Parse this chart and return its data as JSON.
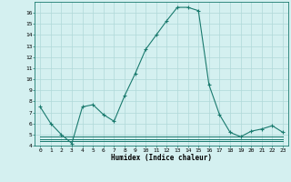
{
  "x": [
    0,
    1,
    2,
    3,
    4,
    5,
    6,
    7,
    8,
    9,
    10,
    11,
    12,
    13,
    14,
    15,
    16,
    17,
    18,
    19,
    20,
    21,
    22,
    23
  ],
  "y_main": [
    7.5,
    6.0,
    5.0,
    4.2,
    7.5,
    7.7,
    6.8,
    6.2,
    8.5,
    10.5,
    12.7,
    14.0,
    15.3,
    16.5,
    16.5,
    16.2,
    9.5,
    6.8,
    5.2,
    4.8,
    5.3,
    5.5,
    5.8,
    5.2
  ],
  "y_flat1": [
    4.8,
    4.8,
    4.8,
    4.8,
    4.8,
    4.8,
    4.8,
    4.8,
    4.8,
    4.8,
    4.8,
    4.8,
    4.8,
    4.8,
    4.8,
    4.8,
    4.8,
    4.8,
    4.8,
    4.8,
    4.8,
    4.8,
    4.8,
    4.8
  ],
  "y_flat2": [
    4.6,
    4.6,
    4.6,
    4.6,
    4.6,
    4.6,
    4.6,
    4.6,
    4.6,
    4.6,
    4.6,
    4.6,
    4.6,
    4.6,
    4.6,
    4.6,
    4.6,
    4.6,
    4.6,
    4.6,
    4.6,
    4.6,
    4.6,
    4.6
  ],
  "y_flat3": [
    4.4,
    4.4,
    4.4,
    4.4,
    4.4,
    4.4,
    4.4,
    4.4,
    4.4,
    4.4,
    4.4,
    4.4,
    4.4,
    4.4,
    4.4,
    4.4,
    4.4,
    4.4,
    4.4,
    4.4,
    4.4,
    4.4,
    4.4,
    4.4
  ],
  "line_color": "#1a7a6e",
  "bg_color": "#d4f0f0",
  "grid_color": "#b0d8d8",
  "xlabel": "Humidex (Indice chaleur)",
  "ylim": [
    4,
    17
  ],
  "xlim_min": -0.5,
  "xlim_max": 23.5,
  "yticks": [
    4,
    5,
    6,
    7,
    8,
    9,
    10,
    11,
    12,
    13,
    14,
    15,
    16
  ],
  "xticks": [
    0,
    1,
    2,
    3,
    4,
    5,
    6,
    7,
    8,
    9,
    10,
    11,
    12,
    13,
    14,
    15,
    16,
    17,
    18,
    19,
    20,
    21,
    22,
    23
  ]
}
